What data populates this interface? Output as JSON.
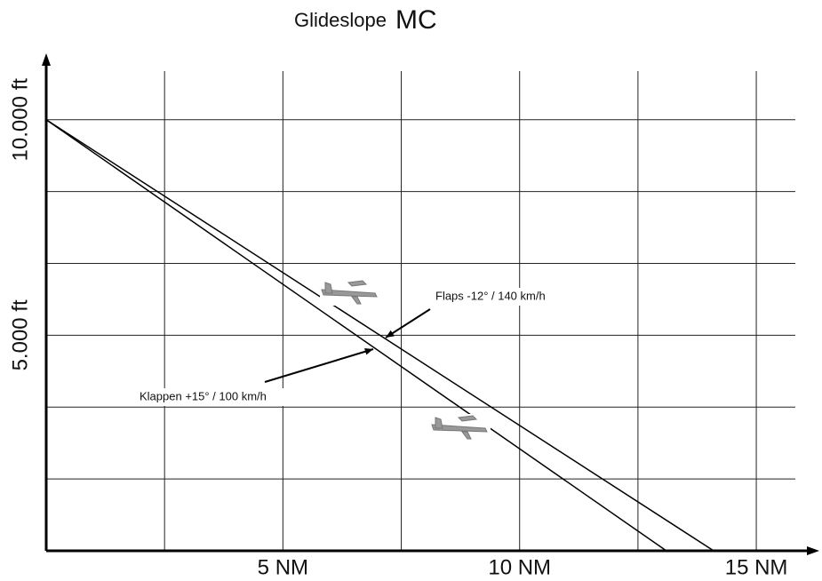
{
  "chart_data": {
    "type": "line",
    "title": "Glideslope",
    "subtitle": "MC",
    "xlim": [
      0,
      16.2
    ],
    "ylim": [
      0,
      11500
    ],
    "xticks": [
      {
        "value": 5,
        "label": "5 NM"
      },
      {
        "value": 10,
        "label": "10 NM"
      },
      {
        "value": 15,
        "label": "15 NM"
      }
    ],
    "yticks": [
      {
        "value": 5000,
        "label": "5.000 ft"
      },
      {
        "value": 10000,
        "label": "10.000 ft"
      }
    ],
    "xgrid": [
      2.5,
      5,
      7.5,
      10,
      12.5,
      15
    ],
    "ygrid": [
      1667,
      3333,
      5000,
      6667,
      8333,
      10000
    ],
    "grid": true,
    "series": [
      {
        "name": "Flaps -12°  /  140 km/h",
        "color": "#000000",
        "x": [
          0,
          14.1
        ],
        "values": [
          10000,
          0
        ]
      },
      {
        "name": "Klappen +15°  /  100 km/h",
        "color": "#000000",
        "x": [
          0,
          13.1
        ],
        "values": [
          10000,
          0
        ]
      }
    ]
  }
}
